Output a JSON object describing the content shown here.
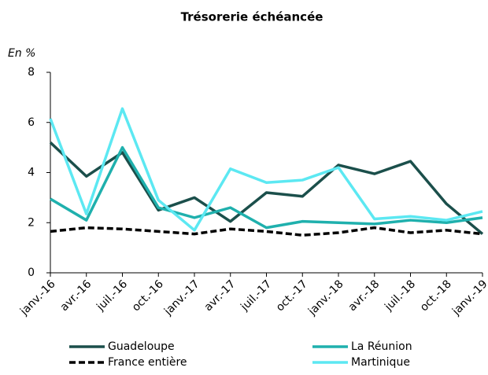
{
  "chart_data": {
    "type": "line",
    "title": "Trésorerie échéancée",
    "y_label": "En %",
    "categories": [
      "janv.-16",
      "avr.-16",
      "juil.-16",
      "oct.-16",
      "janv.-17",
      "avr.-17",
      "juil.-17",
      "oct.-17",
      "janv.-18",
      "avr.-18",
      "juil.-18",
      "oct.-18",
      "janv.-19"
    ],
    "series": [
      {
        "name": "Guadeloupe",
        "color": "#1b4f4b",
        "style": "solid",
        "values": [
          5.2,
          3.85,
          4.8,
          2.5,
          3.0,
          2.05,
          3.2,
          3.05,
          4.3,
          3.95,
          4.45,
          2.75,
          1.55
        ]
      },
      {
        "name": "La Réunion",
        "color": "#1fb0ad",
        "style": "solid",
        "values": [
          2.95,
          2.1,
          5.0,
          2.6,
          2.2,
          2.6,
          1.8,
          2.05,
          2.0,
          1.95,
          2.1,
          2.0,
          2.2
        ]
      },
      {
        "name": "France entière",
        "color": "#000000",
        "style": "dashed",
        "values": [
          1.65,
          1.8,
          1.75,
          1.65,
          1.55,
          1.75,
          1.65,
          1.5,
          1.6,
          1.8,
          1.6,
          1.7,
          1.55
        ]
      },
      {
        "name": "Martinique",
        "color": "#5ce8f2",
        "style": "solid",
        "values": [
          6.15,
          2.35,
          6.55,
          2.9,
          1.7,
          4.15,
          3.6,
          3.7,
          4.2,
          2.15,
          2.25,
          2.1,
          2.45
        ]
      }
    ],
    "ylim": [
      0,
      8
    ],
    "yticks": [
      0,
      2,
      4,
      6,
      8
    ],
    "grid": false,
    "legend": "bottom"
  }
}
